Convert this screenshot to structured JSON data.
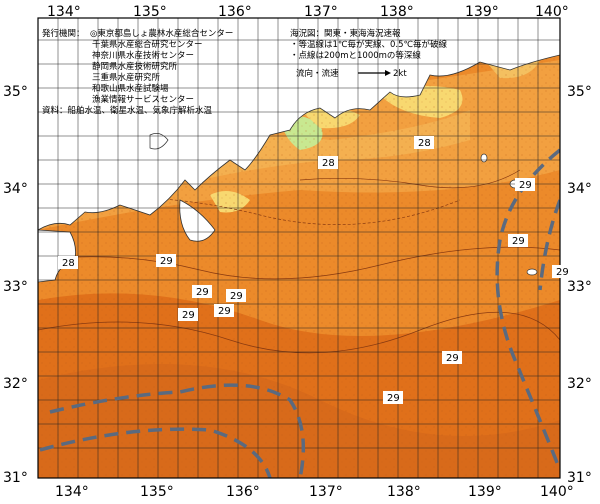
{
  "header": {
    "publisher_title": "発行機関：",
    "publishers": [
      "◎東京都島しょ農林水産総合センター",
      "千葉県水産総合研究センター",
      "神奈川県水産技術センター",
      "静岡県水産技術研究所",
      "三重県水産研究所",
      "和歌山県水産試験場",
      "漁業情報サービスセンター"
    ],
    "sources": "資料：船舶水温、衛星水温、気象庁解析水温",
    "chart_name": "海況図：関東・東海海況速報",
    "legend_isotherm": "・等温線は1℃毎が実線、0.5℃毎が破線",
    "legend_depth": "・点線は200mと1000mの等深線",
    "current_legend_label": "流向・流速",
    "current_legend_unit": "2kt"
  },
  "axes": {
    "lon_labels": [
      "134°",
      "135°",
      "136°",
      "137°",
      "138°",
      "139°",
      "140°"
    ],
    "lat_labels": [
      "35°",
      "34°",
      "33°",
      "32°",
      "31°"
    ]
  },
  "temperature_labels": [
    "28",
    "28",
    "29",
    "28",
    "29",
    "29",
    "29",
    "29",
    "29",
    "29",
    "29",
    "29",
    "29"
  ],
  "colors": {
    "warm_deep": "#e0701a",
    "warm_mid": "#ec8a2a",
    "warm_light": "#f4a640",
    "coastal_yellow": "#f8d870",
    "coastal_green": "#c8e890",
    "land": "#ffffff",
    "kuroshio_line": "#5a6a80"
  }
}
